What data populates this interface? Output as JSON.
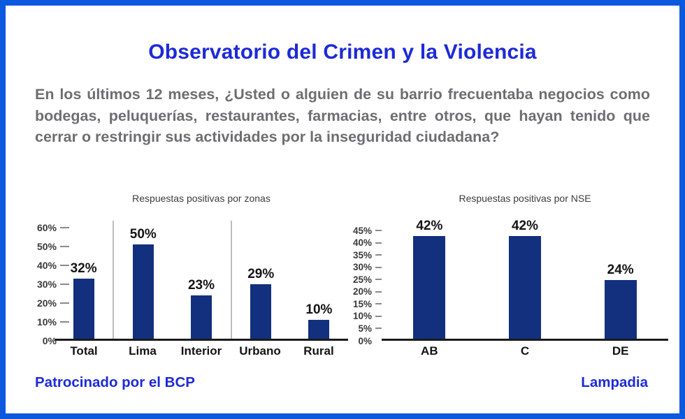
{
  "title": "Observatorio del Crimen y la Violencia",
  "question": "En los últimos 12 meses, ¿Usted o alguien de su barrio frecuentaba negocios como bodegas, peluquerías, restaurantes, farmacias, entre otros, que hayan tenido que cerrar o restringir sus actividades por la inseguridad ciudadana?",
  "footer": {
    "sponsor": "Patrocinado por el BCP",
    "brand": "Lampadia"
  },
  "colors": {
    "frame_blue": "#0c59dd",
    "accent_blue": "#1d2ad6",
    "bar_navy": "#13307e",
    "question_gray": "#6d6e71"
  },
  "chart_data": [
    {
      "type": "bar",
      "title": "Respuestas positivas por zonas",
      "categories": [
        "Total",
        "Lima",
        "Interior",
        "Urbano",
        "Rural"
      ],
      "values": [
        32,
        50,
        23,
        29,
        10
      ],
      "value_labels": [
        "32%",
        "50%",
        "23%",
        "29%",
        "10%"
      ],
      "ylabel": "",
      "xlabel": "",
      "ylim": [
        0,
        60
      ],
      "ytick_step": 10,
      "yticks": [
        "0%",
        "10%",
        "20%",
        "30%",
        "40%",
        "50%",
        "60%"
      ],
      "grid": false,
      "legend": "none",
      "separators_after": [
        0,
        2
      ]
    },
    {
      "type": "bar",
      "title": "Respuestas positivas por NSE",
      "categories": [
        "AB",
        "C",
        "DE"
      ],
      "values": [
        42,
        42,
        24
      ],
      "value_labels": [
        "42%",
        "42%",
        "24%"
      ],
      "ylabel": "",
      "xlabel": "",
      "ylim": [
        0,
        45
      ],
      "ytick_step": 5,
      "yticks": [
        "0%",
        "5%",
        "10%",
        "15%",
        "20%",
        "25%",
        "30%",
        "35%",
        "40%",
        "45%"
      ],
      "grid": false,
      "legend": "none",
      "separators_after": []
    }
  ]
}
